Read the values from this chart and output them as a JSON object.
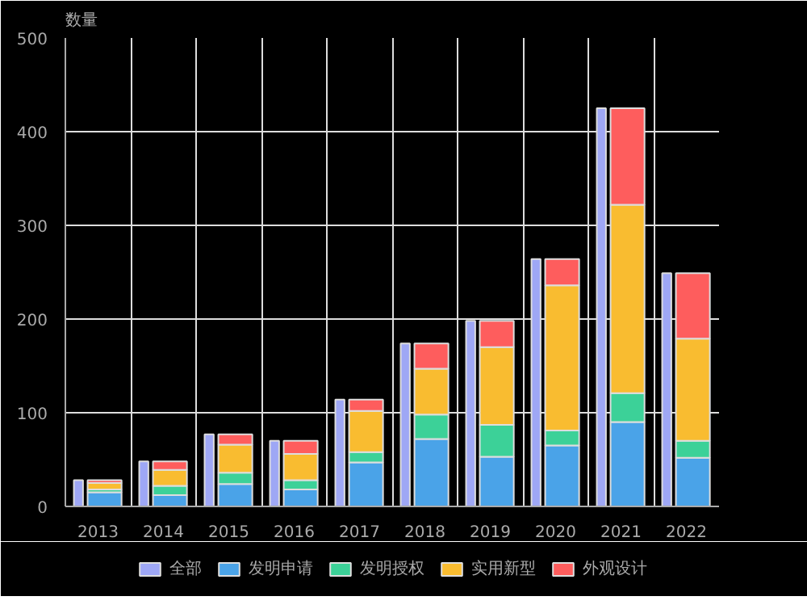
{
  "chart_data": {
    "type": "bar",
    "ylabel": "数量",
    "categories": [
      "2013",
      "2014",
      "2015",
      "2016",
      "2017",
      "2018",
      "2019",
      "2020",
      "2021",
      "2022"
    ],
    "series": [
      {
        "name": "全部",
        "color": "#9ea7f5",
        "values": [
          28,
          48,
          77,
          70,
          114,
          174,
          198,
          264,
          425,
          249
        ]
      },
      {
        "name": "发明申请",
        "color": "#4aa3e8",
        "values": [
          15,
          12,
          24,
          18,
          47,
          72,
          53,
          65,
          90,
          52
        ],
        "base": [
          0,
          0,
          0,
          0,
          0,
          0,
          0,
          0,
          0,
          0
        ]
      },
      {
        "name": "发明授权",
        "color": "#3cd198",
        "values": [
          3,
          10,
          12,
          10,
          11,
          26,
          34,
          16,
          31,
          18
        ],
        "base": [
          15,
          12,
          24,
          18,
          47,
          72,
          53,
          65,
          90,
          52
        ]
      },
      {
        "name": "实用新型",
        "color": "#f9bc30",
        "values": [
          7,
          17,
          30,
          28,
          44,
          49,
          83,
          155,
          201,
          109
        ],
        "base": [
          18,
          22,
          36,
          28,
          58,
          98,
          87,
          81,
          121,
          70
        ]
      },
      {
        "name": "外观设计",
        "color": "#fe5d5d",
        "values": [
          3,
          9,
          11,
          14,
          12,
          27,
          28,
          28,
          103,
          70
        ],
        "base": [
          25,
          39,
          66,
          56,
          102,
          147,
          170,
          236,
          322,
          179
        ]
      }
    ],
    "ylim": [
      0,
      500
    ],
    "yticks": [
      0,
      100,
      200,
      300,
      400,
      500
    ],
    "grid": true,
    "legend": "bottom"
  }
}
